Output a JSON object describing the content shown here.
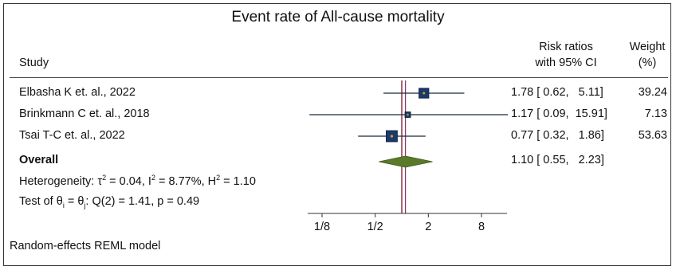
{
  "title": "Event rate of All-cause mortality",
  "headers": {
    "study": "Study",
    "rr_line1": "Risk ratios",
    "rr_line2": "with 95% CI",
    "weight_line1": "Weight",
    "weight_line2": "(%)"
  },
  "heterogeneity": {
    "prefix": "Heterogeneity: τ",
    "tau_sup": "2",
    "tau_val": " = 0.04, I",
    "i_sup": "2",
    "i_val": " = 8.77%, H",
    "h_sup": "2",
    "h_val": " = 1.10"
  },
  "test": {
    "prefix": "Test of θ",
    "sub_i": "i",
    "mid": " = θ",
    "sub_j": "j",
    "rest": ": Q(2) = 1.41, p = 0.49"
  },
  "model_note": "Random-effects REML model",
  "colors": {
    "box_fill": "#1a3a6b",
    "box_center": "#d4a020",
    "diamond": "#5a7a2a",
    "ci_line": "#1a2a3a",
    "null_line": "#7a1a2a",
    "overall_line": "#8a3a6a"
  },
  "chart_data": {
    "type": "forest",
    "title": "Event rate of All-cause mortality",
    "x_scale": "log2",
    "x_ticks": [
      "1/8",
      "1/2",
      "2",
      "8"
    ],
    "x_tick_values": [
      0.125,
      0.5,
      2,
      8
    ],
    "null_value": 1,
    "studies": [
      {
        "name": "Elbasha K et. al., 2022",
        "rr": 1.78,
        "lo": 0.62,
        "hi": 5.11,
        "weight": 39.24,
        "rr_text": "1.78 [ 0.62,   5.11]",
        "weight_text": "39.24"
      },
      {
        "name": "Brinkmann C et. al., 2018",
        "rr": 1.17,
        "lo": 0.09,
        "hi": 15.91,
        "weight": 7.13,
        "rr_text": "1.17 [ 0.09,  15.91]",
        "weight_text": "7.13"
      },
      {
        "name": "Tsai T-C et. al., 2022",
        "rr": 0.77,
        "lo": 0.32,
        "hi": 1.86,
        "weight": 53.63,
        "rr_text": "0.77 [ 0.32,   1.86]",
        "weight_text": "53.63"
      }
    ],
    "overall": {
      "name": "Overall",
      "rr": 1.1,
      "lo": 0.55,
      "hi": 2.23,
      "rr_text": "1.10 [ 0.55,   2.23]"
    }
  }
}
